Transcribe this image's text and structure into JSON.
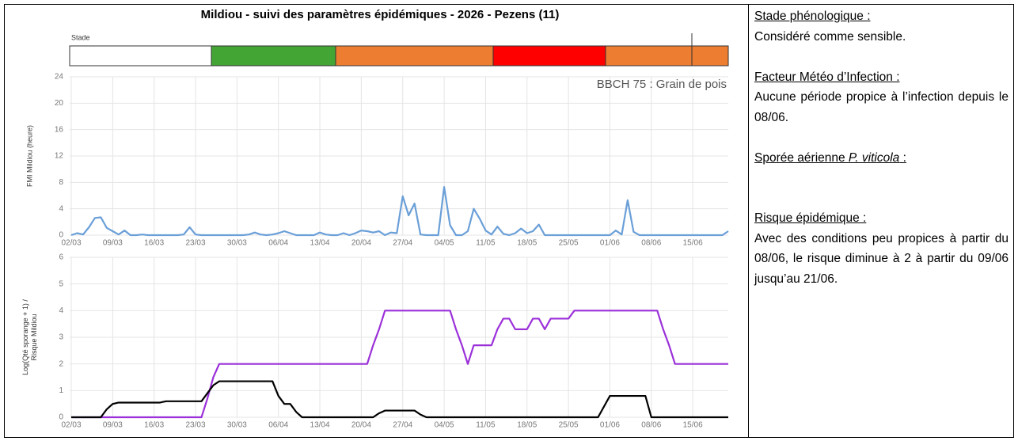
{
  "title": "Mildiou - suivi des paramètres épidémiques - 2026 - Pezens (11)",
  "stade": {
    "label": "Stade"
  },
  "chart_data": [
    {
      "type": "line",
      "annotation": "BBCH 75 : Grain de pois",
      "ylabel": [
        "FMI Mildiou (heure)"
      ],
      "categories": [
        "02/03",
        null,
        null,
        null,
        null,
        null,
        null,
        "09/03",
        null,
        null,
        null,
        null,
        null,
        null,
        "16/03",
        null,
        null,
        null,
        null,
        null,
        null,
        "23/03",
        null,
        null,
        null,
        null,
        null,
        null,
        "30/03",
        null,
        null,
        null,
        null,
        null,
        null,
        "06/04",
        null,
        null,
        null,
        null,
        null,
        null,
        "13/04",
        null,
        null,
        null,
        null,
        null,
        null,
        "20/04",
        null,
        null,
        null,
        null,
        null,
        null,
        "27/04",
        null,
        null,
        null,
        null,
        null,
        null,
        "04/05",
        null,
        null,
        null,
        null,
        null,
        null,
        "11/05",
        null,
        null,
        null,
        null,
        null,
        null,
        "18/05",
        null,
        null,
        null,
        null,
        null,
        null,
        "25/05",
        null,
        null,
        null,
        null,
        null,
        null,
        "01/06",
        null,
        null,
        null,
        null,
        null,
        null,
        "08/06",
        null,
        null,
        null,
        null,
        null,
        null,
        "15/06",
        null,
        null,
        null,
        null,
        null,
        null
      ],
      "series": [
        {
          "color": "#6a9fd8",
          "values": [
            0,
            0.3,
            0.1,
            1.2,
            2.6,
            2.7,
            1.1,
            0.6,
            0.1,
            0.7,
            0,
            0,
            0.1,
            0,
            0,
            0,
            0,
            0,
            0,
            0.1,
            1.2,
            0.1,
            0,
            0,
            0,
            0,
            0,
            0,
            0,
            0,
            0.1,
            0.4,
            0.1,
            0,
            0.1,
            0.3,
            0.6,
            0.3,
            0,
            0,
            0,
            0,
            0.4,
            0.1,
            0,
            0,
            0.3,
            0,
            0.3,
            0.7,
            0.6,
            0.4,
            0.6,
            0,
            0.4,
            0.3,
            5.9,
            3,
            4.8,
            0.1,
            0,
            0,
            0,
            7.3,
            1.5,
            0,
            0,
            0.6,
            4,
            2.5,
            0.7,
            0.1,
            1.3,
            0.2,
            0,
            0.3,
            1,
            0.3,
            0.6,
            1.6,
            0,
            0,
            0,
            0,
            0,
            0,
            0,
            0,
            0,
            0,
            0,
            0,
            0.7,
            0.1,
            5.3,
            0.5,
            0,
            0,
            0,
            0,
            0,
            0,
            0,
            0,
            0,
            0,
            0,
            0,
            0,
            0,
            0,
            0.6
          ]
        }
      ],
      "ylim": [
        0,
        24
      ],
      "yticks": [
        0,
        4,
        8,
        12,
        16,
        20,
        24
      ],
      "grid": true
    },
    {
      "type": "line",
      "ylabel": [
        "Log(Qté sporange + 1) /",
        "Risque Mildiou"
      ],
      "categories": [
        "02/03",
        null,
        null,
        null,
        null,
        null,
        null,
        "09/03",
        null,
        null,
        null,
        null,
        null,
        null,
        "16/03",
        null,
        null,
        null,
        null,
        null,
        null,
        "23/03",
        null,
        null,
        null,
        null,
        null,
        null,
        "30/03",
        null,
        null,
        null,
        null,
        null,
        null,
        "06/04",
        null,
        null,
        null,
        null,
        null,
        null,
        "13/04",
        null,
        null,
        null,
        null,
        null,
        null,
        "20/04",
        null,
        null,
        null,
        null,
        null,
        null,
        "27/04",
        null,
        null,
        null,
        null,
        null,
        null,
        "04/05",
        null,
        null,
        null,
        null,
        null,
        null,
        "11/05",
        null,
        null,
        null,
        null,
        null,
        null,
        "18/05",
        null,
        null,
        null,
        null,
        null,
        null,
        "25/05",
        null,
        null,
        null,
        null,
        null,
        null,
        "01/06",
        null,
        null,
        null,
        null,
        null,
        null,
        "08/06",
        null,
        null,
        null,
        null,
        null,
        null,
        "15/06",
        null,
        null,
        null,
        null,
        null,
        null
      ],
      "series": [
        {
          "color": "#9b30d9",
          "values": [
            0,
            0,
            0,
            0,
            0,
            0,
            0,
            0,
            0,
            0,
            0,
            0,
            0,
            0,
            0,
            0,
            0,
            0,
            0,
            0,
            0,
            0,
            0,
            0.7,
            1.5,
            2,
            2,
            2,
            2,
            2,
            2,
            2,
            2,
            2,
            2,
            2,
            2,
            2,
            2,
            2,
            2,
            2,
            2,
            2,
            2,
            2,
            2,
            2,
            2,
            2,
            2,
            2.7,
            3.3,
            4,
            4,
            4,
            4,
            4,
            4,
            4,
            4,
            4,
            4,
            4,
            4,
            3.3,
            2.7,
            2,
            2.7,
            2.7,
            2.7,
            2.7,
            3.3,
            3.7,
            3.7,
            3.3,
            3.3,
            3.3,
            3.7,
            3.7,
            3.3,
            3.7,
            3.7,
            3.7,
            3.7,
            4,
            4,
            4,
            4,
            4,
            4,
            4,
            4,
            4,
            4,
            4,
            4,
            4,
            4,
            4,
            3.3,
            2.7,
            2,
            2,
            2,
            2,
            2,
            2,
            2,
            2,
            2,
            2
          ]
        },
        {
          "color": "#000000",
          "values": [
            0,
            0,
            0,
            0,
            0,
            0,
            0.3,
            0.5,
            0.55,
            0.55,
            0.55,
            0.55,
            0.55,
            0.55,
            0.55,
            0.55,
            0.6,
            0.6,
            0.6,
            0.6,
            0.6,
            0.6,
            0.6,
            0.9,
            1.2,
            1.35,
            1.35,
            1.35,
            1.35,
            1.35,
            1.35,
            1.35,
            1.35,
            1.35,
            1.35,
            0.8,
            0.5,
            0.5,
            0.2,
            0,
            0,
            0,
            0,
            0,
            0,
            0,
            0,
            0,
            0,
            0,
            0,
            0,
            0.15,
            0.25,
            0.25,
            0.25,
            0.25,
            0.25,
            0.25,
            0.1,
            0,
            0,
            0,
            0,
            0,
            0,
            0,
            0,
            0,
            0,
            0,
            0,
            0,
            0,
            0,
            0,
            0,
            0,
            0,
            0,
            0,
            0,
            0,
            0,
            0,
            0,
            0,
            0,
            0,
            0,
            0.4,
            0.8,
            0.8,
            0.8,
            0.8,
            0.8,
            0.8,
            0.8,
            0,
            0,
            0,
            0,
            0,
            0,
            0,
            0,
            0,
            0,
            0,
            0,
            0,
            0
          ]
        }
      ],
      "ylim": [
        0,
        6
      ],
      "yticks": [
        0,
        1,
        2,
        3,
        4,
        5,
        6
      ],
      "grid": true
    }
  ],
  "side_panel": {
    "stade_heading": "Stade phénologique :",
    "stade_text": "Considéré comme sensible.",
    "fmi_heading": "Facteur Météo d’Infection :",
    "fmi_text": "Aucune période propice à l’infection depuis le 08/06.",
    "sporee_heading_start": "Sporée aérienne ",
    "sporee_heading_italic": "P. viticola",
    "sporee_heading_end": " :",
    "risque_heading": "Risque épidémique :",
    "risque_text": "Avec des conditions peu propices à partir du 08/06, le risque diminue à 2 à partir du 09/06 jusqu’au 21/06."
  }
}
